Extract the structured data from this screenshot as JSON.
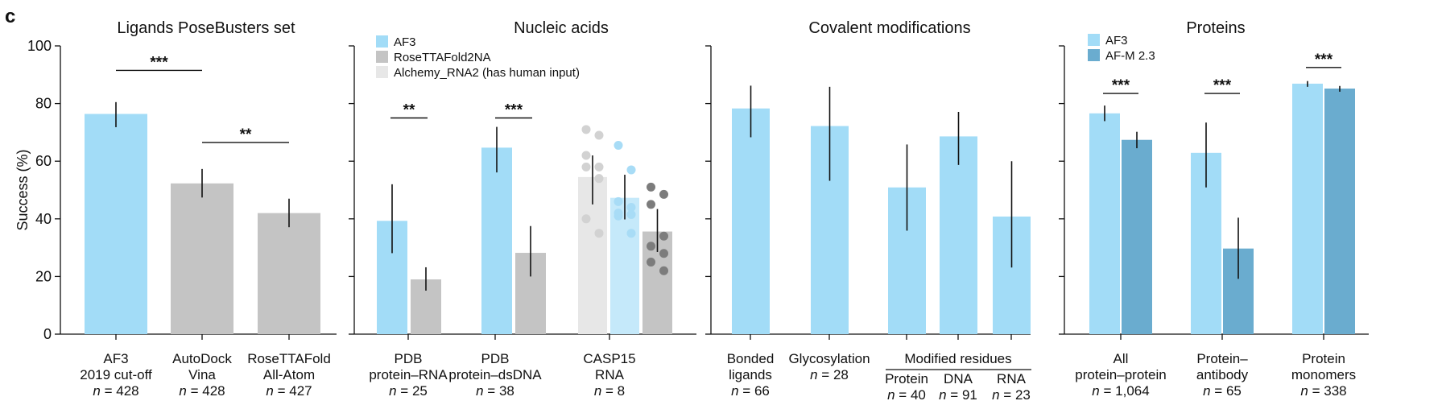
{
  "figure_label": "c",
  "colors": {
    "af3": "#a2dcf7",
    "rosettafold2na": "#c4c4c4",
    "alchemy": "#e7e7e7",
    "casp15_af3": "#c5e9fa",
    "afm": "#6aaccf",
    "dot_alchemy": "#d2d2d2",
    "dot_af3": "#a8dcf6",
    "dot_rosetta": "#7c7c7c"
  },
  "chart_data": [
    {
      "type": "bar",
      "title": "Ligands PoseBusters set",
      "ylabel": "Success (%)",
      "ylim": [
        0,
        100
      ],
      "yticks": [
        0,
        20,
        40,
        60,
        80,
        100
      ],
      "categories": [
        {
          "lines": [
            "AF3",
            "2019 cut-off"
          ],
          "n": "428"
        },
        {
          "lines": [
            "AutoDock",
            "Vina"
          ],
          "n": "428"
        },
        {
          "lines": [
            "RoseTTAFold",
            "All-Atom"
          ],
          "n": "427"
        }
      ],
      "bars": [
        {
          "category": 0,
          "series": "AF3",
          "value": 76.4,
          "err": [
            71.8,
            80.5
          ],
          "color_key": "af3"
        },
        {
          "category": 1,
          "series": "AutoDock Vina",
          "value": 52.3,
          "err": [
            47.4,
            57.3
          ],
          "color_key": "rosettafold2na"
        },
        {
          "category": 2,
          "series": "RoseTTAFold All-Atom",
          "value": 42.0,
          "err": [
            37.1,
            47.0
          ],
          "color_key": "rosettafold2na"
        }
      ],
      "significance": [
        {
          "from_bar": 0,
          "to_bar": 1,
          "y": 91.5,
          "label": "***"
        },
        {
          "from_bar": 1,
          "to_bar": 2,
          "y": 66.5,
          "label": "**"
        }
      ]
    },
    {
      "type": "bar",
      "title": "Nucleic acids",
      "ylim": [
        0,
        100
      ],
      "legend": [
        {
          "label": "AF3",
          "color_key": "af3"
        },
        {
          "label": "RoseTTAFold2NA",
          "color_key": "rosettafold2na"
        },
        {
          "label": "Alchemy_RNA2 (has human input)",
          "color_key": "alchemy"
        }
      ],
      "categories": [
        {
          "lines": [
            "PDB",
            "protein–RNA"
          ],
          "n": "25"
        },
        {
          "lines": [
            "PDB",
            "protein–dsDNA"
          ],
          "n": "38"
        },
        {
          "lines": [
            "CASP15",
            "RNA"
          ],
          "n": "8"
        }
      ],
      "bars": [
        {
          "category": 0,
          "series": "AF3",
          "value": 39.3,
          "err": [
            28.1,
            52.0
          ],
          "color_key": "af3"
        },
        {
          "category": 0,
          "series": "RoseTTAFold2NA",
          "value": 19.0,
          "err": [
            15.1,
            23.2
          ],
          "color_key": "rosettafold2na"
        },
        {
          "category": 1,
          "series": "AF3",
          "value": 64.7,
          "err": [
            56.1,
            71.9
          ],
          "color_key": "af3"
        },
        {
          "category": 1,
          "series": "RoseTTAFold2NA",
          "value": 28.2,
          "err": [
            20.0,
            37.5
          ],
          "color_key": "rosettafold2na"
        },
        {
          "category": 2,
          "series": "Alchemy_RNA2",
          "value": 54.5,
          "err": [
            45.0,
            62.0
          ],
          "color_key": "alchemy",
          "points": [
            71,
            69,
            62,
            58,
            58,
            54,
            40,
            35
          ],
          "dot_key": "dot_alchemy"
        },
        {
          "category": 2,
          "series": "AF3",
          "value": 47.3,
          "err": [
            39.8,
            55.3
          ],
          "color_key": "casp15_af3",
          "points": [
            65.5,
            57,
            46,
            44,
            42,
            41.5,
            41,
            35
          ],
          "dot_key": "dot_af3"
        },
        {
          "category": 2,
          "series": "RoseTTAFold2NA",
          "value": 35.6,
          "err": [
            28.5,
            43.4
          ],
          "color_key": "rosettafold2na",
          "points": [
            51,
            48.5,
            45,
            34,
            30.5,
            28,
            25,
            22
          ],
          "dot_key": "dot_rosetta"
        }
      ],
      "significance": [
        {
          "from_bar": 0,
          "to_bar": 1,
          "y": 75.0,
          "label": "**"
        },
        {
          "from_bar": 2,
          "to_bar": 3,
          "y": 75.0,
          "label": "***"
        }
      ]
    },
    {
      "type": "bar",
      "title": "Covalent modifications",
      "ylim": [
        0,
        100
      ],
      "group_label": "Modified residues",
      "categories": [
        {
          "lines": [
            "Bonded",
            "ligands"
          ],
          "n": "66"
        },
        {
          "lines": [
            "Glycosylation"
          ],
          "n": "28"
        },
        {
          "lines": [
            "Protein"
          ],
          "n": "40"
        },
        {
          "lines": [
            "DNA"
          ],
          "n": "91"
        },
        {
          "lines": [
            "RNA"
          ],
          "n": "23"
        }
      ],
      "bars": [
        {
          "category": 0,
          "series": "AF3",
          "value": 78.3,
          "err": [
            68.3,
            86.2
          ],
          "color_key": "af3"
        },
        {
          "category": 1,
          "series": "AF3",
          "value": 72.2,
          "err": [
            53.2,
            85.8
          ],
          "color_key": "af3"
        },
        {
          "category": 2,
          "series": "AF3",
          "value": 50.9,
          "err": [
            35.9,
            65.8
          ],
          "color_key": "af3"
        },
        {
          "category": 3,
          "series": "AF3",
          "value": 68.6,
          "err": [
            58.7,
            77.1
          ],
          "color_key": "af3"
        },
        {
          "category": 4,
          "series": "AF3",
          "value": 40.8,
          "err": [
            23.1,
            60.0
          ],
          "color_key": "af3"
        }
      ]
    },
    {
      "type": "bar",
      "title": "Proteins",
      "ylim": [
        0,
        100
      ],
      "legend": [
        {
          "label": "AF3",
          "color_key": "af3"
        },
        {
          "label": "AF-M 2.3",
          "color_key": "afm"
        }
      ],
      "categories": [
        {
          "lines": [
            "All",
            "protein–protein"
          ],
          "n": "1,064"
        },
        {
          "lines": [
            "Protein–",
            "antibody"
          ],
          "n": "65"
        },
        {
          "lines": [
            "Protein",
            "monomers"
          ],
          "n": "338"
        }
      ],
      "bars": [
        {
          "category": 0,
          "series": "AF3",
          "value": 76.6,
          "err": [
            73.9,
            79.3
          ],
          "color_key": "af3"
        },
        {
          "category": 0,
          "series": "AF-M 2.3",
          "value": 67.4,
          "err": [
            64.5,
            70.2
          ],
          "color_key": "afm"
        },
        {
          "category": 1,
          "series": "AF3",
          "value": 62.9,
          "err": [
            50.9,
            73.4
          ],
          "color_key": "af3"
        },
        {
          "category": 1,
          "series": "AF-M 2.3",
          "value": 29.7,
          "err": [
            19.2,
            40.4
          ],
          "color_key": "afm"
        },
        {
          "category": 2,
          "series": "AF3",
          "value": 86.9,
          "err": [
            85.8,
            87.8
          ],
          "color_key": "af3"
        },
        {
          "category": 2,
          "series": "AF-M 2.3",
          "value": 85.2,
          "err": [
            84.1,
            86.1
          ],
          "color_key": "afm"
        }
      ],
      "significance": [
        {
          "from_bar": 0,
          "to_bar": 1,
          "y": 83.5,
          "label": "***"
        },
        {
          "from_bar": 2,
          "to_bar": 3,
          "y": 83.5,
          "label": "***"
        },
        {
          "from_bar": 4,
          "to_bar": 5,
          "y": 92.5,
          "label": "***"
        }
      ]
    }
  ]
}
